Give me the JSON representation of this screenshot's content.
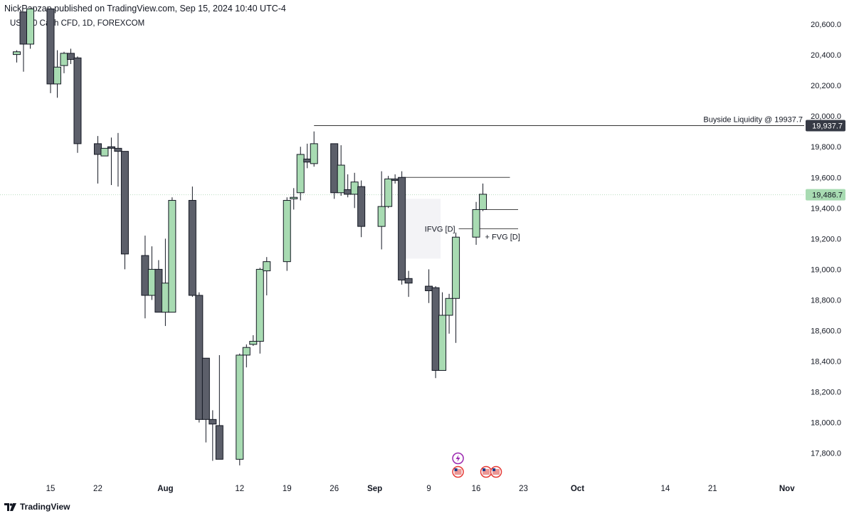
{
  "header": {
    "published_line": "NickPapzap published on TradingView.com, Sep 15, 2024 10:40 UTC-4"
  },
  "symbol_info": "US 100 Cash CFD, 1D, FOREXCOM",
  "footer": {
    "brand": "TradingView"
  },
  "colors": {
    "up": "#a8dbb2",
    "down": "#5c5f6a",
    "border": "#131722",
    "last_price": "#a8dbb2",
    "liquidity_label_bg": "#363a45"
  },
  "chart_data": {
    "type": "candlestick",
    "title": "US 100 Cash CFD, 1D, FOREXCOM",
    "y_axis": {
      "ticks": [
        "17,800.0",
        "18,000.0",
        "18,200.0",
        "18,400.0",
        "18,600.0",
        "18,800.0",
        "19,000.0",
        "19,200.0",
        "19,400.0",
        "19,600.0",
        "19,800.0",
        "20,000.0",
        "20,200.0",
        "20,400.0",
        "20,600.0"
      ],
      "range": [
        17660,
        20680
      ]
    },
    "x_axis": {
      "ticks": [
        "15",
        "22",
        "Aug",
        "12",
        "19",
        "26",
        "Sep",
        "9",
        "16",
        "23",
        "Oct",
        "14",
        "21",
        "Nov"
      ]
    },
    "grid": false,
    "last_price": {
      "value": 19486.7,
      "label": "19,486.7"
    },
    "buyside_liquidity": {
      "value": 19937.7,
      "label": "19,937.7",
      "text": "Buyside Liquidity @ 19937.7"
    },
    "annotations": [
      {
        "text": "IFVG [D]"
      },
      {
        "text": "+ FVG [D]"
      }
    ],
    "levels": [
      19600,
      19390,
      19265
    ],
    "candles": [
      {
        "date": "2024-07-10",
        "o": 20402,
        "h": 20430,
        "l": 20350,
        "c": 20420
      },
      {
        "date": "2024-07-11",
        "o": 20680,
        "h": 20680,
        "l": 20290,
        "c": 20470
      },
      {
        "date": "2024-07-12",
        "o": 20470,
        "h": 20700,
        "l": 20440,
        "c": 20700
      },
      {
        "date": "2024-07-15",
        "o": 20700,
        "h": 20700,
        "l": 20150,
        "c": 20210
      },
      {
        "date": "2024-07-16",
        "o": 20210,
        "h": 20430,
        "l": 20120,
        "c": 20320
      },
      {
        "date": "2024-07-17",
        "o": 20330,
        "h": 20420,
        "l": 20280,
        "c": 20410
      },
      {
        "date": "2024-07-18",
        "o": 20410,
        "h": 20440,
        "l": 20340,
        "c": 20370
      },
      {
        "date": "2024-07-19",
        "o": 20380,
        "h": 20390,
        "l": 19760,
        "c": 19820
      },
      {
        "date": "2024-07-22",
        "o": 19820,
        "h": 19870,
        "l": 19560,
        "c": 19750
      },
      {
        "date": "2024-07-23",
        "o": 19740,
        "h": 19790,
        "l": 19740,
        "c": 19790
      },
      {
        "date": "2024-07-24",
        "o": 19800,
        "h": 19860,
        "l": 19550,
        "c": 19790
      },
      {
        "date": "2024-07-25",
        "o": 19790,
        "h": 19890,
        "l": 19540,
        "c": 19770
      },
      {
        "date": "2024-07-26",
        "o": 19770,
        "h": 19770,
        "l": 19000,
        "c": 19100
      },
      {
        "date": "2024-07-29",
        "o": 19090,
        "h": 19220,
        "l": 18680,
        "c": 18830
      },
      {
        "date": "2024-07-30",
        "o": 18830,
        "h": 19150,
        "l": 18800,
        "c": 19000
      },
      {
        "date": "2024-07-31",
        "o": 19000,
        "h": 19060,
        "l": 18720,
        "c": 18720
      },
      {
        "date": "2024-08-01",
        "o": 18720,
        "h": 19200,
        "l": 18630,
        "c": 18910
      },
      {
        "date": "2024-08-02",
        "o": 18720,
        "h": 19470,
        "l": 18720,
        "c": 19450
      },
      {
        "date": "2024-08-05",
        "o": 19450,
        "h": 19540,
        "l": 18820,
        "c": 18830
      },
      {
        "date": "2024-08-06",
        "o": 18830,
        "h": 18850,
        "l": 18000,
        "c": 18020
      },
      {
        "date": "2024-08-07",
        "o": 18420,
        "h": 18420,
        "l": 17870,
        "c": 18020
      },
      {
        "date": "2024-08-08",
        "o": 18020,
        "h": 18080,
        "l": 17750,
        "c": 17990
      },
      {
        "date": "2024-08-09",
        "o": 17980,
        "h": 18440,
        "l": 17760,
        "c": 17760
      },
      {
        "date": "2024-08-12",
        "o": 17760,
        "h": 18450,
        "l": 17720,
        "c": 18440
      },
      {
        "date": "2024-08-13",
        "o": 18440,
        "h": 18510,
        "l": 18360,
        "c": 18490
      },
      {
        "date": "2024-08-14",
        "o": 18510,
        "h": 18570,
        "l": 18500,
        "c": 18530
      },
      {
        "date": "2024-08-15",
        "o": 18530,
        "h": 19010,
        "l": 18450,
        "c": 19000
      },
      {
        "date": "2024-08-16",
        "o": 18990,
        "h": 19080,
        "l": 18830,
        "c": 19050
      },
      {
        "date": "2024-08-19",
        "o": 19050,
        "h": 19470,
        "l": 18990,
        "c": 19450
      },
      {
        "date": "2024-08-20",
        "o": 19460,
        "h": 19530,
        "l": 19390,
        "c": 19470
      },
      {
        "date": "2024-08-21",
        "o": 19500,
        "h": 19800,
        "l": 19450,
        "c": 19750
      },
      {
        "date": "2024-08-22",
        "o": 19720,
        "h": 19820,
        "l": 19660,
        "c": 19700
      },
      {
        "date": "2024-08-23",
        "o": 19690,
        "h": 19900,
        "l": 19670,
        "c": 19820
      },
      {
        "date": "2024-08-26",
        "o": 19820,
        "h": 19820,
        "l": 19460,
        "c": 19500
      },
      {
        "date": "2024-08-27",
        "o": 19500,
        "h": 19810,
        "l": 19480,
        "c": 19680
      },
      {
        "date": "2024-08-28",
        "o": 19520,
        "h": 19620,
        "l": 19470,
        "c": 19490
      },
      {
        "date": "2024-08-29",
        "o": 19490,
        "h": 19630,
        "l": 19400,
        "c": 19570
      },
      {
        "date": "2024-08-30",
        "o": 19540,
        "h": 19580,
        "l": 19210,
        "c": 19280
      },
      {
        "date": "2024-09-02",
        "o": 19280,
        "h": 19640,
        "l": 19130,
        "c": 19410
      },
      {
        "date": "2024-09-03",
        "o": 19410,
        "h": 19610,
        "l": 19400,
        "c": 19590
      },
      {
        "date": "2024-09-04",
        "o": 19590,
        "h": 19620,
        "l": 19560,
        "c": 19580
      },
      {
        "date": "2024-09-05",
        "o": 19600,
        "h": 19640,
        "l": 18900,
        "c": 18930
      },
      {
        "date": "2024-09-06",
        "o": 18940,
        "h": 18990,
        "l": 18820,
        "c": 18910
      },
      {
        "date": "2024-09-09",
        "o": 18890,
        "h": 19000,
        "l": 18780,
        "c": 18860
      },
      {
        "date": "2024-09-10",
        "o": 18880,
        "h": 18890,
        "l": 18290,
        "c": 18340
      },
      {
        "date": "2024-09-11",
        "o": 18340,
        "h": 18850,
        "l": 18340,
        "c": 18700
      },
      {
        "date": "2024-09-12",
        "o": 18700,
        "h": 18840,
        "l": 18580,
        "c": 18810
      },
      {
        "date": "2024-09-13",
        "o": 18810,
        "h": 19240,
        "l": 18520,
        "c": 19210
      },
      {
        "date": "2024-09-16",
        "o": 19210,
        "h": 19440,
        "l": 19160,
        "c": 19390
      },
      {
        "date": "2024-09-17",
        "o": 19390,
        "h": 19560,
        "l": 19380,
        "c": 19490
      }
    ]
  }
}
